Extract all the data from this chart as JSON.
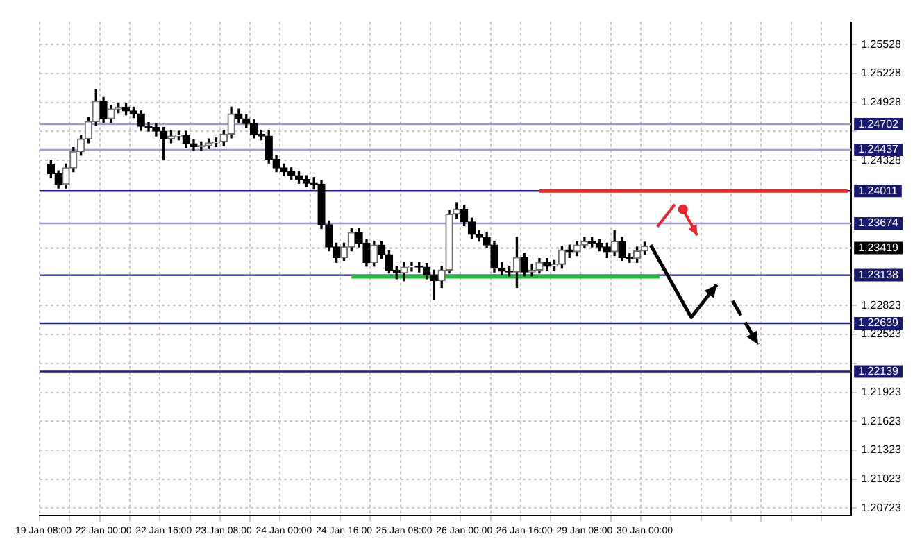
{
  "chart_data": {
    "type": "candlestick",
    "categories": [
      "19 Jan 08:00",
      null,
      null,
      null,
      null,
      null,
      null,
      null,
      "22 Jan 00:00",
      null,
      null,
      null,
      null,
      null,
      null,
      null,
      "22 Jan 16:00",
      null,
      null,
      null,
      null,
      null,
      null,
      null,
      "23 Jan 08:00",
      null,
      null,
      null,
      null,
      null,
      null,
      null,
      "24 Jan 00:00",
      null,
      null,
      null,
      null,
      null,
      null,
      null,
      "24 Jan 16:00",
      null,
      null,
      null,
      null,
      null,
      null,
      null,
      "25 Jan 08:00",
      null,
      null,
      null,
      null,
      null,
      null,
      null,
      "26 Jan 00:00",
      null,
      null,
      null,
      null,
      null,
      null,
      null,
      "26 Jan 16:00",
      null,
      null,
      null,
      null,
      null,
      null,
      null,
      "29 Jan 08:00",
      null,
      null,
      null,
      null,
      null,
      null,
      null,
      "30 Jan 00:00",
      null,
      null,
      null,
      null,
      null,
      null,
      null,
      null,
      null,
      null,
      null,
      null,
      null,
      null,
      null,
      null,
      null,
      null,
      null,
      null,
      null,
      null,
      null,
      null,
      null,
      null,
      null
    ],
    "ohlc": [
      null,
      [
        1.2429,
        1.2433,
        1.2415,
        1.2419
      ],
      [
        1.2419,
        1.2422,
        1.2404,
        1.2408
      ],
      [
        1.2408,
        1.2429,
        1.2404,
        1.2425
      ],
      [
        1.2425,
        1.2446,
        1.2421,
        1.2442
      ],
      [
        1.2442,
        1.2459,
        1.2438,
        1.2455
      ],
      [
        1.2455,
        1.2477,
        1.2451,
        1.2473
      ],
      [
        1.2473,
        1.2506,
        1.2469,
        1.2494
      ],
      [
        1.2494,
        1.2498,
        1.2472,
        1.2476
      ],
      [
        1.2476,
        1.249,
        1.2472,
        1.2486
      ],
      [
        1.2486,
        1.2492,
        1.2482,
        1.2488
      ],
      [
        1.2488,
        1.2492,
        1.248,
        1.2484
      ],
      [
        1.2484,
        1.2488,
        1.2477,
        1.2481
      ],
      [
        1.2481,
        1.2484,
        1.2464,
        1.2468
      ],
      [
        1.2468,
        1.2472,
        1.2463,
        1.2467
      ],
      [
        1.2467,
        1.2471,
        1.2458,
        1.2463
      ],
      [
        1.2463,
        1.2467,
        1.2434,
        1.2455
      ],
      [
        1.2455,
        1.2464,
        1.2451,
        1.2458
      ],
      [
        1.2458,
        1.2463,
        1.2454,
        1.2459
      ],
      [
        1.2459,
        1.2463,
        1.2446,
        1.245
      ],
      [
        1.245,
        1.2454,
        1.2443,
        1.2447
      ],
      [
        1.2447,
        1.2452,
        1.2443,
        1.2448
      ],
      [
        1.2448,
        1.2455,
        1.2445,
        1.2451
      ],
      [
        1.2451,
        1.2456,
        1.2447,
        1.2452
      ],
      [
        1.2452,
        1.2464,
        1.2448,
        1.246
      ],
      [
        1.246,
        1.2488,
        1.2456,
        1.2481
      ],
      [
        1.2481,
        1.2486,
        1.2472,
        1.2476
      ],
      [
        1.2476,
        1.248,
        1.2467,
        1.2471
      ],
      [
        1.2471,
        1.2475,
        1.2456,
        1.246
      ],
      [
        1.246,
        1.2464,
        1.2454,
        1.2458
      ],
      [
        1.2458,
        1.2464,
        1.243,
        1.2434
      ],
      [
        1.2434,
        1.2438,
        1.2421,
        1.2425
      ],
      [
        1.2425,
        1.2429,
        1.2417,
        1.2421
      ],
      [
        1.2421,
        1.2425,
        1.2413,
        1.2417
      ],
      [
        1.2417,
        1.2421,
        1.2409,
        1.2413
      ],
      [
        1.2413,
        1.2417,
        1.2406,
        1.2409
      ],
      [
        1.2409,
        1.2415,
        1.2403,
        1.2408
      ],
      [
        1.2408,
        1.2412,
        1.2362,
        1.2366
      ],
      [
        1.2366,
        1.237,
        1.2339,
        1.2343
      ],
      [
        1.2343,
        1.2347,
        1.2327,
        1.2332
      ],
      [
        1.2332,
        1.2347,
        1.2329,
        1.2343
      ],
      [
        1.2343,
        1.2362,
        1.2339,
        1.2358
      ],
      [
        1.2358,
        1.2362,
        1.2343,
        1.2347
      ],
      [
        1.2347,
        1.2351,
        1.2323,
        1.2327
      ],
      [
        1.2327,
        1.2349,
        1.2323,
        1.2345
      ],
      [
        1.2345,
        1.2349,
        1.2331,
        1.2335
      ],
      [
        1.2335,
        1.2339,
        1.2316,
        1.2319
      ],
      [
        1.2319,
        1.2323,
        1.231,
        1.2316
      ],
      [
        1.2316,
        1.2327,
        1.2308,
        1.2322
      ],
      [
        1.2322,
        1.2327,
        1.2318,
        1.2323
      ],
      [
        1.2323,
        1.2327,
        1.2317,
        1.2322
      ],
      [
        1.2322,
        1.2326,
        1.231,
        1.2314
      ],
      [
        1.2314,
        1.2319,
        1.2288,
        1.2308
      ],
      [
        1.2308,
        1.2323,
        1.2301,
        1.2319
      ],
      [
        1.2319,
        1.2381,
        1.2316,
        1.2377
      ],
      [
        1.2377,
        1.2389,
        1.2373,
        1.2382
      ],
      [
        1.2382,
        1.2386,
        1.2365,
        1.2369
      ],
      [
        1.2369,
        1.2373,
        1.2352,
        1.2356
      ],
      [
        1.2356,
        1.236,
        1.2349,
        1.2353
      ],
      [
        1.2353,
        1.2358,
        1.2342,
        1.2345
      ],
      [
        1.2345,
        1.2349,
        1.2317,
        1.2321
      ],
      [
        1.2321,
        1.2327,
        1.2314,
        1.2318
      ],
      [
        1.2318,
        1.2323,
        1.2313,
        1.2317
      ],
      [
        1.2317,
        1.2353,
        1.2301,
        1.2332
      ],
      [
        1.2332,
        1.2336,
        1.2313,
        1.2317
      ],
      [
        1.2317,
        1.2325,
        1.2313,
        1.2319
      ],
      [
        1.2319,
        1.2331,
        1.2316,
        1.2327
      ],
      [
        1.2327,
        1.2331,
        1.2319,
        1.2323
      ],
      [
        1.2323,
        1.2329,
        1.2319,
        1.2325
      ],
      [
        1.2325,
        1.2344,
        1.2321,
        1.234
      ],
      [
        1.234,
        1.2345,
        1.2332,
        1.2338
      ],
      [
        1.2338,
        1.2349,
        1.2334,
        1.2345
      ],
      [
        1.2345,
        1.2353,
        1.2342,
        1.2349
      ],
      [
        1.2349,
        1.2353,
        1.2343,
        1.2347
      ],
      [
        1.2347,
        1.2351,
        1.2339,
        1.2343
      ],
      [
        1.2343,
        1.2347,
        1.2332,
        1.2338
      ],
      [
        1.2338,
        1.236,
        1.2334,
        1.2349
      ],
      [
        1.2349,
        1.2353,
        1.2329,
        1.2332
      ],
      [
        1.2332,
        1.2336,
        1.2327,
        1.2331
      ],
      [
        1.2331,
        1.2343,
        1.2327,
        1.2339
      ],
      [
        1.2339,
        1.2348,
        1.2335,
        1.2344
      ],
      null,
      null,
      null,
      null,
      null,
      null,
      null,
      null,
      null,
      null,
      null,
      null,
      null,
      null,
      null,
      null,
      null,
      null,
      null,
      null,
      null,
      null,
      null,
      null,
      null,
      null,
      null
    ],
    "series": [
      {
        "type": "line",
        "color": "#22bb33",
        "marker": "none",
        "values": [
          null,
          null,
          null,
          null,
          null,
          null,
          null,
          null,
          null,
          null,
          null,
          null,
          null,
          null,
          null,
          null,
          null,
          null,
          null,
          null,
          null,
          null,
          null,
          null,
          null,
          null,
          null,
          null,
          null,
          null,
          null,
          null,
          null,
          null,
          null,
          null,
          null,
          null,
          null,
          null,
          null,
          1.2312,
          1.2312,
          1.2312,
          1.2312,
          1.2312,
          1.2312,
          1.2312,
          1.2312,
          1.2312,
          1.2312,
          1.2312,
          1.2312,
          1.2312,
          1.2312,
          1.2312,
          1.2312,
          1.2312,
          1.2312,
          1.2312,
          1.2312,
          1.2312,
          1.2312,
          1.2312,
          1.2312,
          1.2312,
          1.2312,
          1.2312,
          1.2312,
          1.2312,
          1.2312,
          1.2312,
          1.2312,
          1.2312,
          1.2312,
          1.2312,
          1.2312,
          1.2312,
          1.2312,
          1.2312,
          1.2312,
          1.2312,
          1.2312,
          null,
          null,
          null,
          null,
          null,
          null,
          null,
          null,
          null,
          null,
          null,
          null,
          null,
          null,
          null,
          null,
          null,
          null,
          null,
          null,
          null,
          null,
          null,
          null,
          null
        ]
      },
      {
        "type": "line",
        "color": "#e8262b",
        "marker": "none",
        "values": [
          null,
          null,
          null,
          null,
          null,
          null,
          null,
          null,
          null,
          null,
          null,
          null,
          null,
          null,
          null,
          null,
          null,
          null,
          null,
          null,
          null,
          null,
          null,
          null,
          null,
          null,
          null,
          null,
          null,
          null,
          null,
          null,
          null,
          null,
          null,
          null,
          null,
          null,
          null,
          null,
          null,
          null,
          null,
          null,
          null,
          null,
          null,
          null,
          null,
          null,
          null,
          null,
          null,
          null,
          null,
          null,
          null,
          null,
          null,
          null,
          null,
          null,
          null,
          null,
          null,
          null,
          1.2401,
          1.2401,
          1.2401,
          1.2401,
          1.2401,
          1.2401,
          1.2401,
          1.2401,
          1.2401,
          1.2401,
          1.2401,
          1.2401,
          1.2401,
          1.2401,
          1.2401,
          1.2401,
          1.2401,
          1.2401,
          1.2401,
          1.2401,
          1.2401,
          1.2401,
          1.2401,
          1.2401,
          1.2401,
          1.2401,
          1.2401,
          1.2401,
          1.2401,
          1.2401,
          1.2401,
          1.2401,
          1.2401,
          1.2401,
          1.2401,
          1.2401,
          1.2401,
          1.2401,
          1.2401,
          1.2401,
          1.2401,
          1.2401
        ]
      }
    ],
    "ylim": [
      1.20645,
      1.25763
    ],
    "yticks": [
      1.25528,
      1.25228,
      1.24928,
      {
        "value": 1.24628,
        "label": null
      },
      1.24328,
      1.22823,
      1.22523,
      {
        "value": 1.22223,
        "label": null
      },
      1.21923,
      1.21623,
      1.21323,
      1.21023,
      1.20723
    ],
    "grid": true,
    "ref_lines": [
      {
        "axis": "y",
        "value": 1.24702,
        "label": "1.24702",
        "color": "#9a9ad0",
        "line_style": "solid"
      },
      {
        "axis": "y",
        "value": 1.24437,
        "label": "1.24437",
        "color": "#9a9ad0",
        "line_style": "solid"
      },
      {
        "axis": "y",
        "value": 1.24011,
        "label": "1.24011",
        "color": "#20207a",
        "line_style": "solid"
      },
      {
        "axis": "y",
        "value": 1.23674,
        "label": "1.23674",
        "color": "#9a9ad0",
        "line_style": "solid"
      },
      {
        "axis": "y",
        "value": 1.23419,
        "label": "1.23419",
        "color": "#c0c0c0",
        "line_style": "dotted"
      },
      {
        "axis": "y",
        "value": 1.23138,
        "label": "1.23138",
        "color": "#20207a",
        "line_style": "solid"
      },
      {
        "axis": "y",
        "value": 1.22639,
        "label": "1.22639",
        "color": "#20207a",
        "line_style": "solid"
      },
      {
        "axis": "y",
        "value": 1.22139,
        "label": "1.22139",
        "color": "#20207a",
        "line_style": "solid"
      }
    ]
  }
}
